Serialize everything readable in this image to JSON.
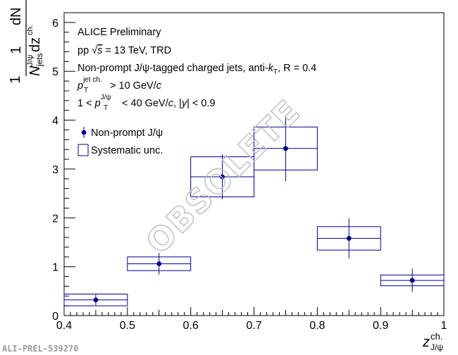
{
  "chart_data": {
    "type": "scatter",
    "xlim": [
      0.4,
      1.0
    ],
    "ylim": [
      0,
      6.2
    ],
    "x_ticks": [
      "0.4",
      "0.5",
      "0.6",
      "0.7",
      "0.8",
      "0.9",
      "1"
    ],
    "y_ticks": [
      "0",
      "1",
      "2",
      "3",
      "4",
      "5",
      "6"
    ],
    "xlabel": {
      "main": "z",
      "sup": "ch.",
      "sub": "J/ψ"
    },
    "ylabel": {
      "num": "1",
      "den_main": "N",
      "den_sub": "jets",
      "den_sup": "J/ψ",
      "dN": "dN",
      "dz": "dz",
      "dz_sup": "ch."
    },
    "annotations": {
      "line1": "ALICE Preliminary",
      "line2_a": "pp ",
      "line2_sqrt": "√",
      "line2_s": "s",
      "line2_b": " = 13 TeV, TRD",
      "line3_a": "Non-prompt J/ψ-tagged charged jets, anti-",
      "line3_k": "k",
      "line3_sub": "T",
      "line3_b": ", R = 0.4",
      "line4_p": "p",
      "line4_sup": "jet ch.",
      "line4_sub": "T",
      "line4_b": " > 10 GeV/",
      "line4_c": "c",
      "line5_a": "1 < ",
      "line5_p": "p",
      "line5_sup": "J/ψ",
      "line5_sub": "T",
      "line5_b": " < 40 GeV/",
      "line5_c": "c",
      "line5_d": ", |",
      "line5_y": "y",
      "line5_e": "| < 0.9"
    },
    "legend": [
      {
        "label": "Non-prompt J/ψ",
        "kind": "marker"
      },
      {
        "label": "Systematic unc.",
        "kind": "box"
      }
    ],
    "series": [
      {
        "name": "Non-prompt J/ψ",
        "color": "#00008b",
        "points": [
          {
            "x": 0.45,
            "y": 0.32,
            "stat": 0.11,
            "syst": 0.12,
            "xw": 0.05
          },
          {
            "x": 0.55,
            "y": 1.06,
            "stat": 0.22,
            "syst": 0.14,
            "xw": 0.05
          },
          {
            "x": 0.65,
            "y": 2.84,
            "stat": 0.46,
            "syst": 0.41,
            "xw": 0.05
          },
          {
            "x": 0.75,
            "y": 3.42,
            "stat": 0.67,
            "syst": 0.44,
            "xw": 0.05
          },
          {
            "x": 0.85,
            "y": 1.58,
            "stat": 0.41,
            "syst": 0.24,
            "xw": 0.05
          },
          {
            "x": 0.95,
            "y": 0.72,
            "stat": 0.24,
            "syst": 0.11,
            "xw": 0.05
          }
        ]
      }
    ],
    "watermark": "OBSOLETE",
    "footer": "ALI-PREL-539270"
  }
}
